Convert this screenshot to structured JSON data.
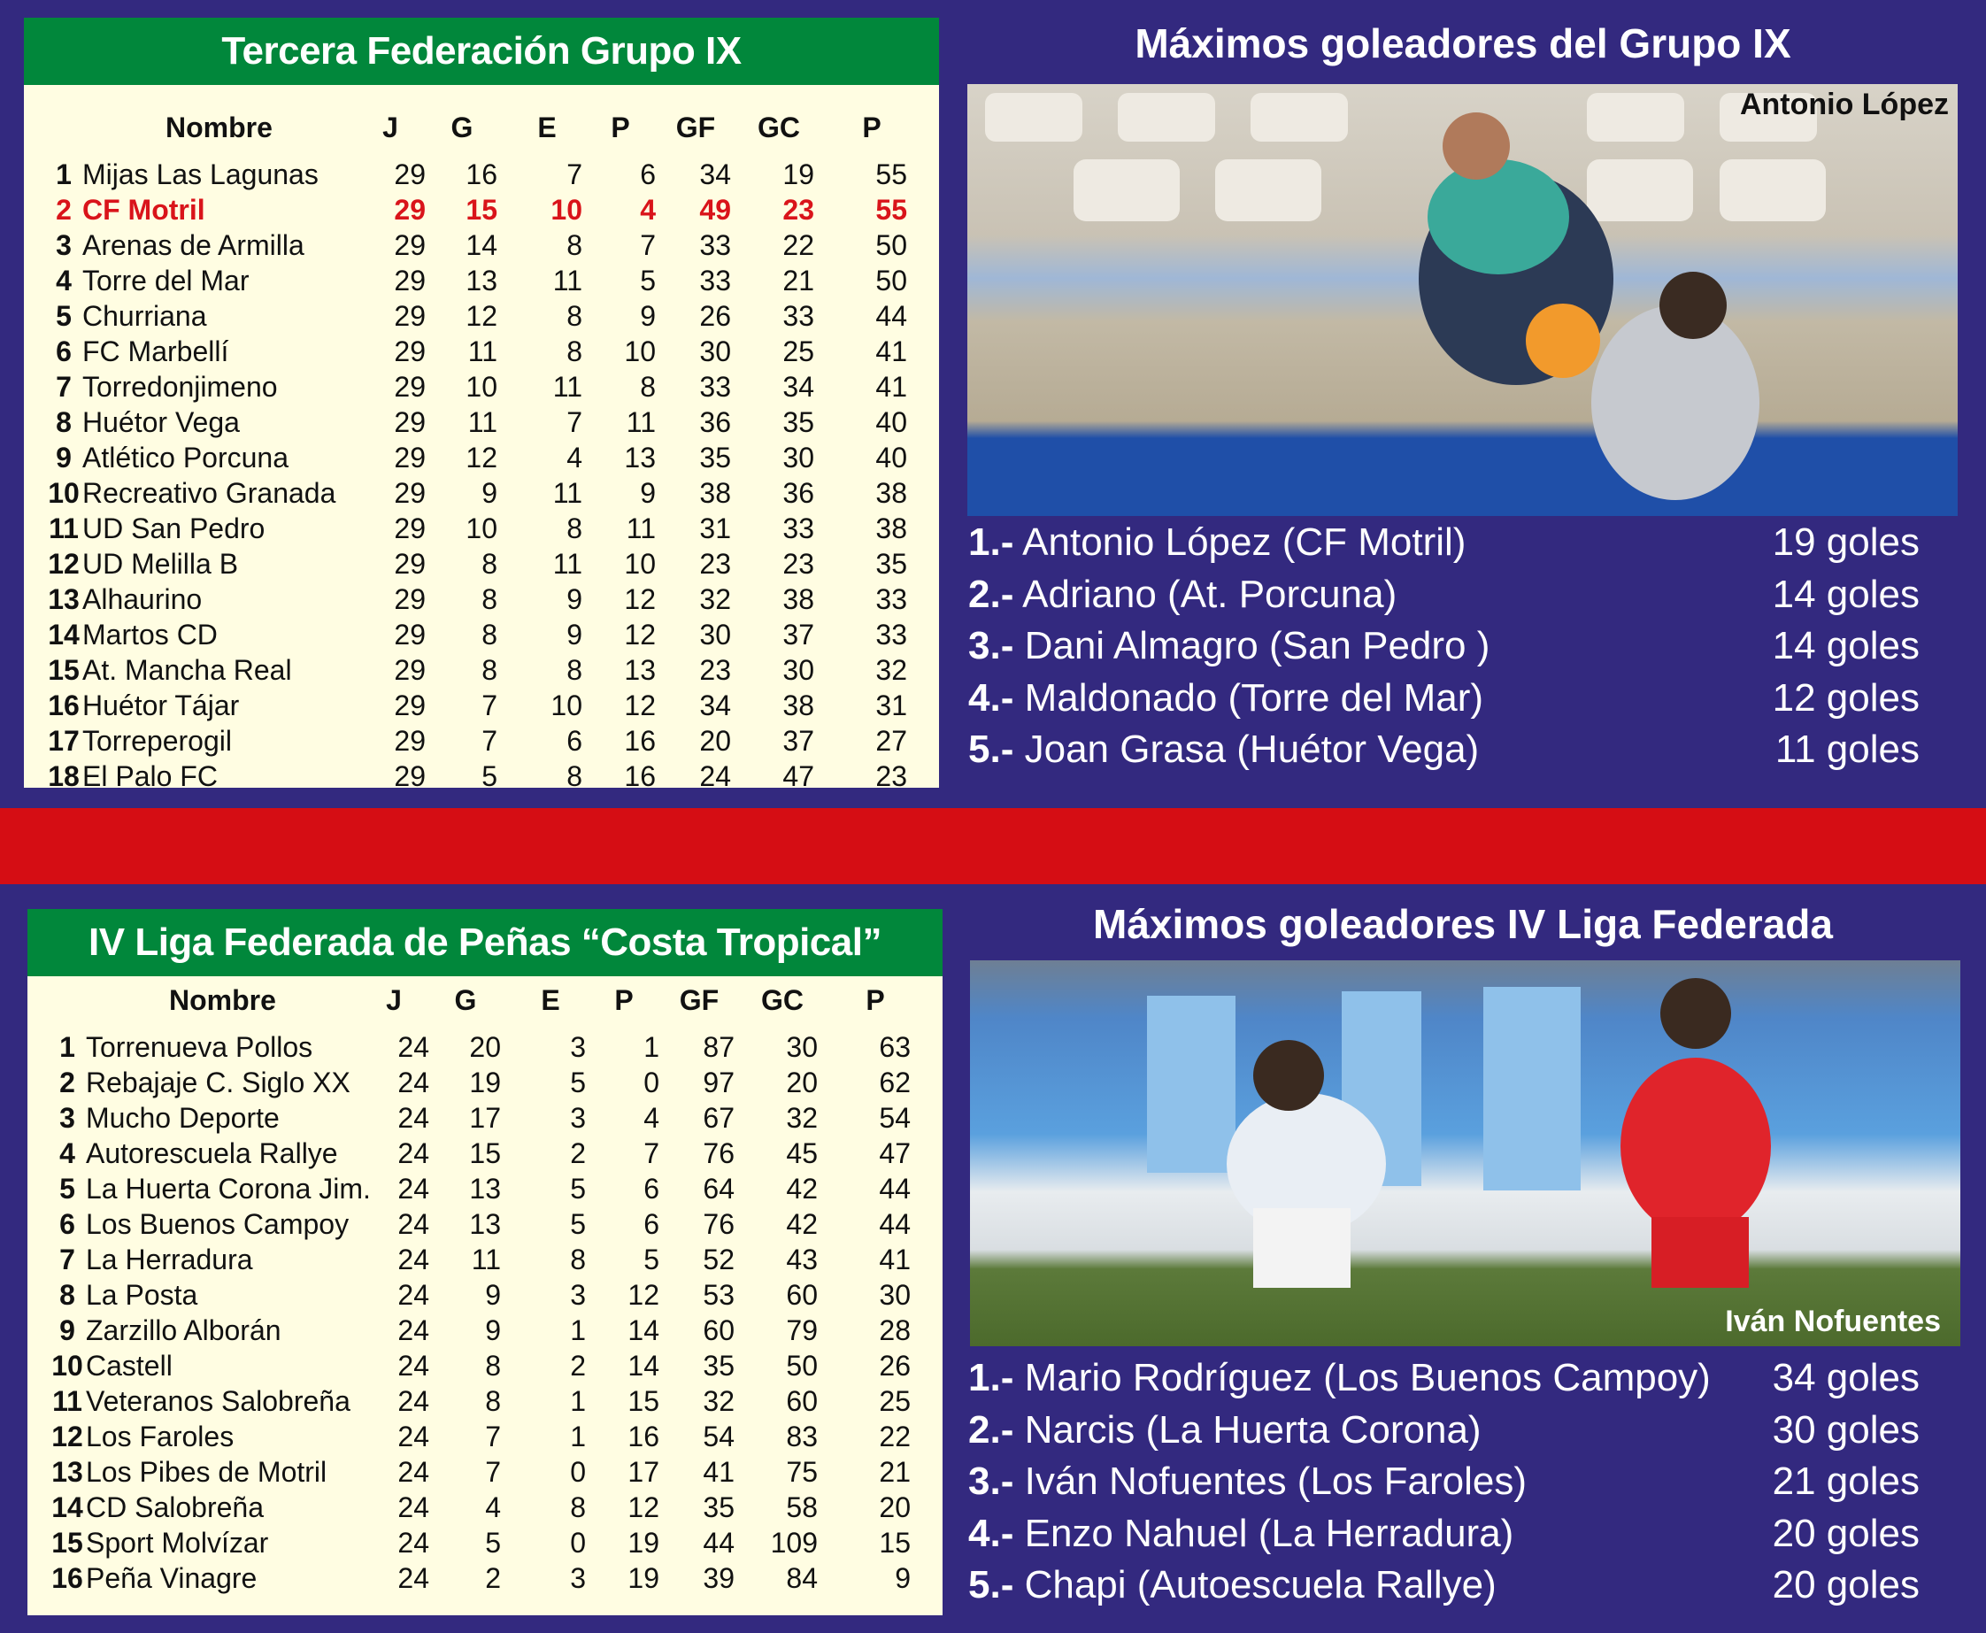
{
  "colors": {
    "background": "#33297f",
    "header_green": "#01873b",
    "table_bg": "#fffde2",
    "highlight_red": "#d9141a",
    "band_red": "#d50d14"
  },
  "columns": [
    "Nombre",
    "J",
    "G",
    "E",
    "P",
    "GF",
    "GC",
    "P"
  ],
  "table1": {
    "title": "Tercera Federación Grupo IX",
    "highlight_row": 1,
    "rows": [
      [
        "1",
        "Mijas Las Lagunas",
        "29",
        "16",
        "7",
        "6",
        "34",
        "19",
        "55"
      ],
      [
        "2",
        "CF Motril",
        "29",
        "15",
        "10",
        "4",
        "49",
        "23",
        "55"
      ],
      [
        "3",
        "Arenas de Armilla",
        "29",
        "14",
        "8",
        "7",
        "33",
        "22",
        "50"
      ],
      [
        "4",
        "Torre del Mar",
        "29",
        "13",
        "11",
        "5",
        "33",
        "21",
        "50"
      ],
      [
        "5",
        "Churriana",
        "29",
        "12",
        "8",
        "9",
        "26",
        "33",
        "44"
      ],
      [
        "6",
        "FC Marbellí",
        "29",
        "11",
        "8",
        "10",
        "30",
        "25",
        "41"
      ],
      [
        "7",
        "Torredonjimeno",
        "29",
        "10",
        "11",
        "8",
        "33",
        "34",
        "41"
      ],
      [
        "8",
        "Huétor Vega",
        "29",
        "11",
        "7",
        "11",
        "36",
        "35",
        "40"
      ],
      [
        "9",
        "Atlético Porcuna",
        "29",
        "12",
        "4",
        "13",
        "35",
        "30",
        "40"
      ],
      [
        "10",
        "Recreativo Granada",
        "29",
        "9",
        "11",
        "9",
        "38",
        "36",
        "38"
      ],
      [
        "11",
        "UD San Pedro",
        "29",
        "10",
        "8",
        "11",
        "31",
        "33",
        "38"
      ],
      [
        "12",
        "UD Melilla B",
        "29",
        "8",
        "11",
        "10",
        "23",
        "23",
        "35"
      ],
      [
        "13",
        "Alhaurino",
        "29",
        "8",
        "9",
        "12",
        "32",
        "38",
        "33"
      ],
      [
        "14",
        "Martos CD",
        "29",
        "8",
        "9",
        "12",
        "30",
        "37",
        "33"
      ],
      [
        "15",
        "At. Mancha Real",
        "29",
        "8",
        "8",
        "13",
        "23",
        "30",
        "32"
      ],
      [
        "16",
        "Huétor Tájar",
        "29",
        "7",
        "10",
        "12",
        "34",
        "38",
        "31"
      ],
      [
        "17",
        "Torreperogil",
        "29",
        "7",
        "6",
        "16",
        "20",
        "37",
        "27"
      ],
      [
        "18",
        "El Palo FC",
        "29",
        "5",
        "8",
        "16",
        "24",
        "47",
        "23"
      ]
    ]
  },
  "scorers1": {
    "title": "Máximos goleadores del Grupo IX",
    "photo_caption": "Antonio López",
    "items": [
      {
        "n": "1.-",
        "name": "Antonio López (CF Motril)",
        "goals": "19 goles"
      },
      {
        "n": "2.-",
        "name": "Adriano (At. Porcuna)",
        "goals": "14 goles"
      },
      {
        "n": "3.-",
        "name": "Dani Almagro (San Pedro )",
        "goals": "14 goles"
      },
      {
        "n": "4.-",
        "name": "Maldonado (Torre del Mar)",
        "goals": "12 goles"
      },
      {
        "n": "5.-",
        "name": "Joan Grasa (Huétor Vega)",
        "goals": "11 goles"
      }
    ]
  },
  "table2": {
    "title": "IV Liga Federada de Peñas “Costa Tropical”",
    "rows": [
      [
        "1",
        "Torrenueva Pollos",
        "24",
        "20",
        "3",
        "1",
        "87",
        "30",
        "63"
      ],
      [
        "2",
        "Rebajaje C. Siglo XX",
        "24",
        "19",
        "5",
        "0",
        "97",
        "20",
        "62"
      ],
      [
        "3",
        "Mucho Deporte",
        "24",
        "17",
        "3",
        "4",
        "67",
        "32",
        "54"
      ],
      [
        "4",
        "Autorescuela Rallye",
        "24",
        "15",
        "2",
        "7",
        "76",
        "45",
        "47"
      ],
      [
        "5",
        "La Huerta Corona Jim.",
        "24",
        "13",
        "5",
        "6",
        "64",
        "42",
        "44"
      ],
      [
        "6",
        "Los Buenos Campoy",
        "24",
        "13",
        "5",
        "6",
        "76",
        "42",
        "44"
      ],
      [
        "7",
        "La Herradura",
        "24",
        "11",
        "8",
        "5",
        "52",
        "43",
        "41"
      ],
      [
        "8",
        "La Posta",
        "24",
        "9",
        "3",
        "12",
        "53",
        "60",
        "30"
      ],
      [
        "9",
        "Zarzillo Alborán",
        "24",
        "9",
        "1",
        "14",
        "60",
        "79",
        "28"
      ],
      [
        "10",
        "Castell",
        "24",
        "8",
        "2",
        "14",
        "35",
        "50",
        "26"
      ],
      [
        "11",
        "Veteranos Salobreña",
        "24",
        "8",
        "1",
        "15",
        "32",
        "60",
        "25"
      ],
      [
        "12",
        "Los Faroles",
        "24",
        "7",
        "1",
        "16",
        "54",
        "83",
        "22"
      ],
      [
        "13",
        "Los Pibes de Motril",
        "24",
        "7",
        "0",
        "17",
        "41",
        "75",
        "21"
      ],
      [
        "14",
        "CD Salobreña",
        "24",
        "4",
        "8",
        "12",
        "35",
        "58",
        "20"
      ],
      [
        "15",
        "Sport Molvízar",
        "24",
        "5",
        "0",
        "19",
        "44",
        "109",
        "15"
      ],
      [
        "16",
        "Peña Vinagre",
        "24",
        "2",
        "3",
        "19",
        "39",
        "84",
        "9"
      ]
    ]
  },
  "scorers2": {
    "title": "Máximos goleadores IV Liga Federada",
    "photo_caption": "Iván Nofuentes",
    "items": [
      {
        "n": "1.-",
        "name": "Mario Rodríguez (Los Buenos Campoy)",
        "goals": "34 goles"
      },
      {
        "n": "2.-",
        "name": "Narcis (La Huerta Corona)",
        "goals": "30 goles"
      },
      {
        "n": "3.-",
        "name": "Iván Nofuentes (Los Faroles)",
        "goals": "21 goles"
      },
      {
        "n": "4.-",
        "name": "Enzo Nahuel (La Herradura)",
        "goals": "20 goles"
      },
      {
        "n": "5.-",
        "name": "Chapi (Autoescuela Rallye)",
        "goals": "20 goles"
      }
    ]
  }
}
